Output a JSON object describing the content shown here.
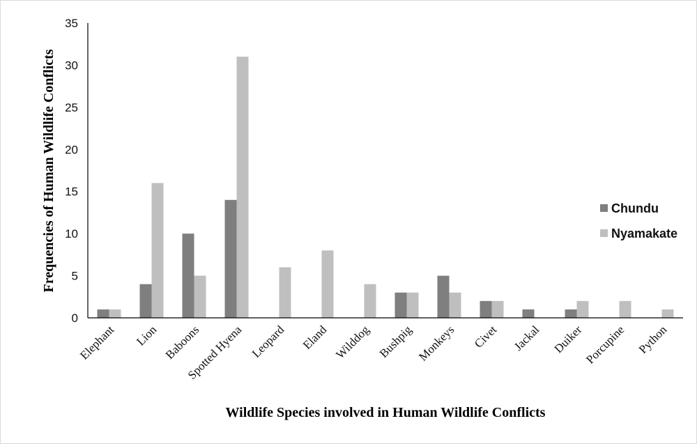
{
  "chart_data": {
    "type": "bar",
    "title": "",
    "xlabel": "Wildlife Species involved in Human Wildlife Conflicts",
    "ylabel": "Frequencies of Human Wildlife Conflicts",
    "ylim": [
      0,
      35
    ],
    "yticks": [
      0,
      5,
      10,
      15,
      20,
      25,
      30,
      35
    ],
    "grid": false,
    "legend_position": "right",
    "categories": [
      "Elephant",
      "Lion",
      "Baboons",
      "Spotted Hyena",
      "Leopard",
      "Eland",
      "Wilddog",
      "Bushpig",
      "Monkeys",
      "Civet",
      "Jackal",
      "Duiker",
      "Porcupine",
      "Python"
    ],
    "series": [
      {
        "name": "Chundu",
        "color": "#7f7f7f",
        "values": [
          1,
          4,
          10,
          14,
          0,
          0,
          0,
          3,
          5,
          2,
          1,
          1,
          0,
          0
        ]
      },
      {
        "name": "Nyamakate",
        "color": "#bfbfbf",
        "values": [
          1,
          16,
          5,
          31,
          6,
          8,
          4,
          3,
          3,
          2,
          0,
          2,
          2,
          1
        ]
      }
    ]
  }
}
